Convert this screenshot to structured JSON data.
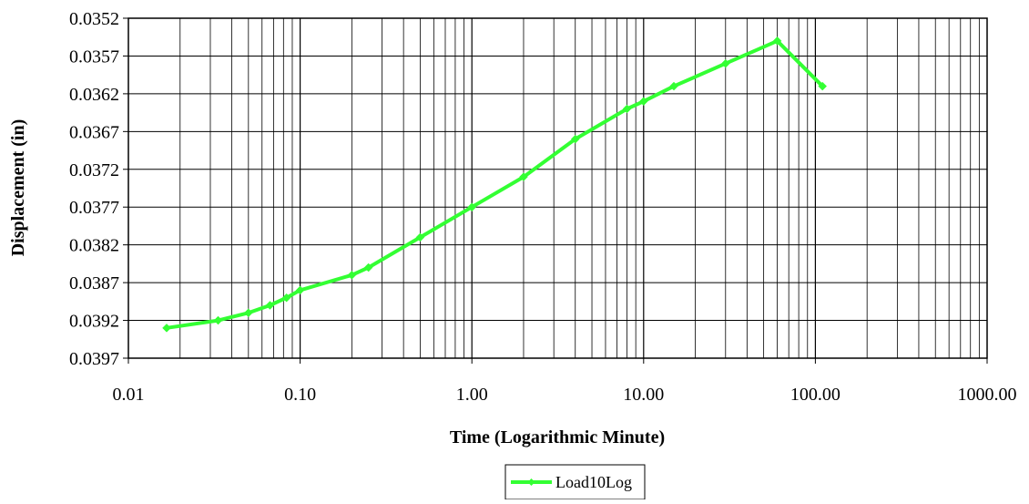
{
  "chart_data": {
    "type": "line",
    "title": "",
    "xlabel": "Time (Logarithmic Minute)",
    "ylabel": "Displacement (in)",
    "x_scale": "log",
    "xlim": [
      0.01,
      1000
    ],
    "ylim": [
      0.0352,
      0.0397
    ],
    "y_inverted": true,
    "x_tick_labels": [
      "0.01",
      "0.10",
      "1.00",
      "10.00",
      "100.00",
      "1000.00"
    ],
    "y_tick_labels": [
      "0.0352",
      "0.0357",
      "0.0362",
      "0.0367",
      "0.0372",
      "0.0377",
      "0.0382",
      "0.0387",
      "0.0392",
      "0.0397"
    ],
    "grid": true,
    "legend_position": "bottom-center",
    "series": [
      {
        "name": "Load10Log",
        "color": "#33FF33",
        "marker": "diamond",
        "x": [
          0.0167,
          0.0333,
          0.05,
          0.0667,
          0.0833,
          0.1,
          0.2,
          0.25,
          0.5,
          1,
          2,
          4,
          8,
          10,
          15,
          30,
          60,
          110
        ],
        "y": [
          0.0393,
          0.0392,
          0.0391,
          0.039,
          0.0389,
          0.0388,
          0.0386,
          0.0385,
          0.0381,
          0.0377,
          0.0373,
          0.0368,
          0.0364,
          0.0363,
          0.0361,
          0.0358,
          0.0355,
          0.0361
        ]
      }
    ]
  }
}
